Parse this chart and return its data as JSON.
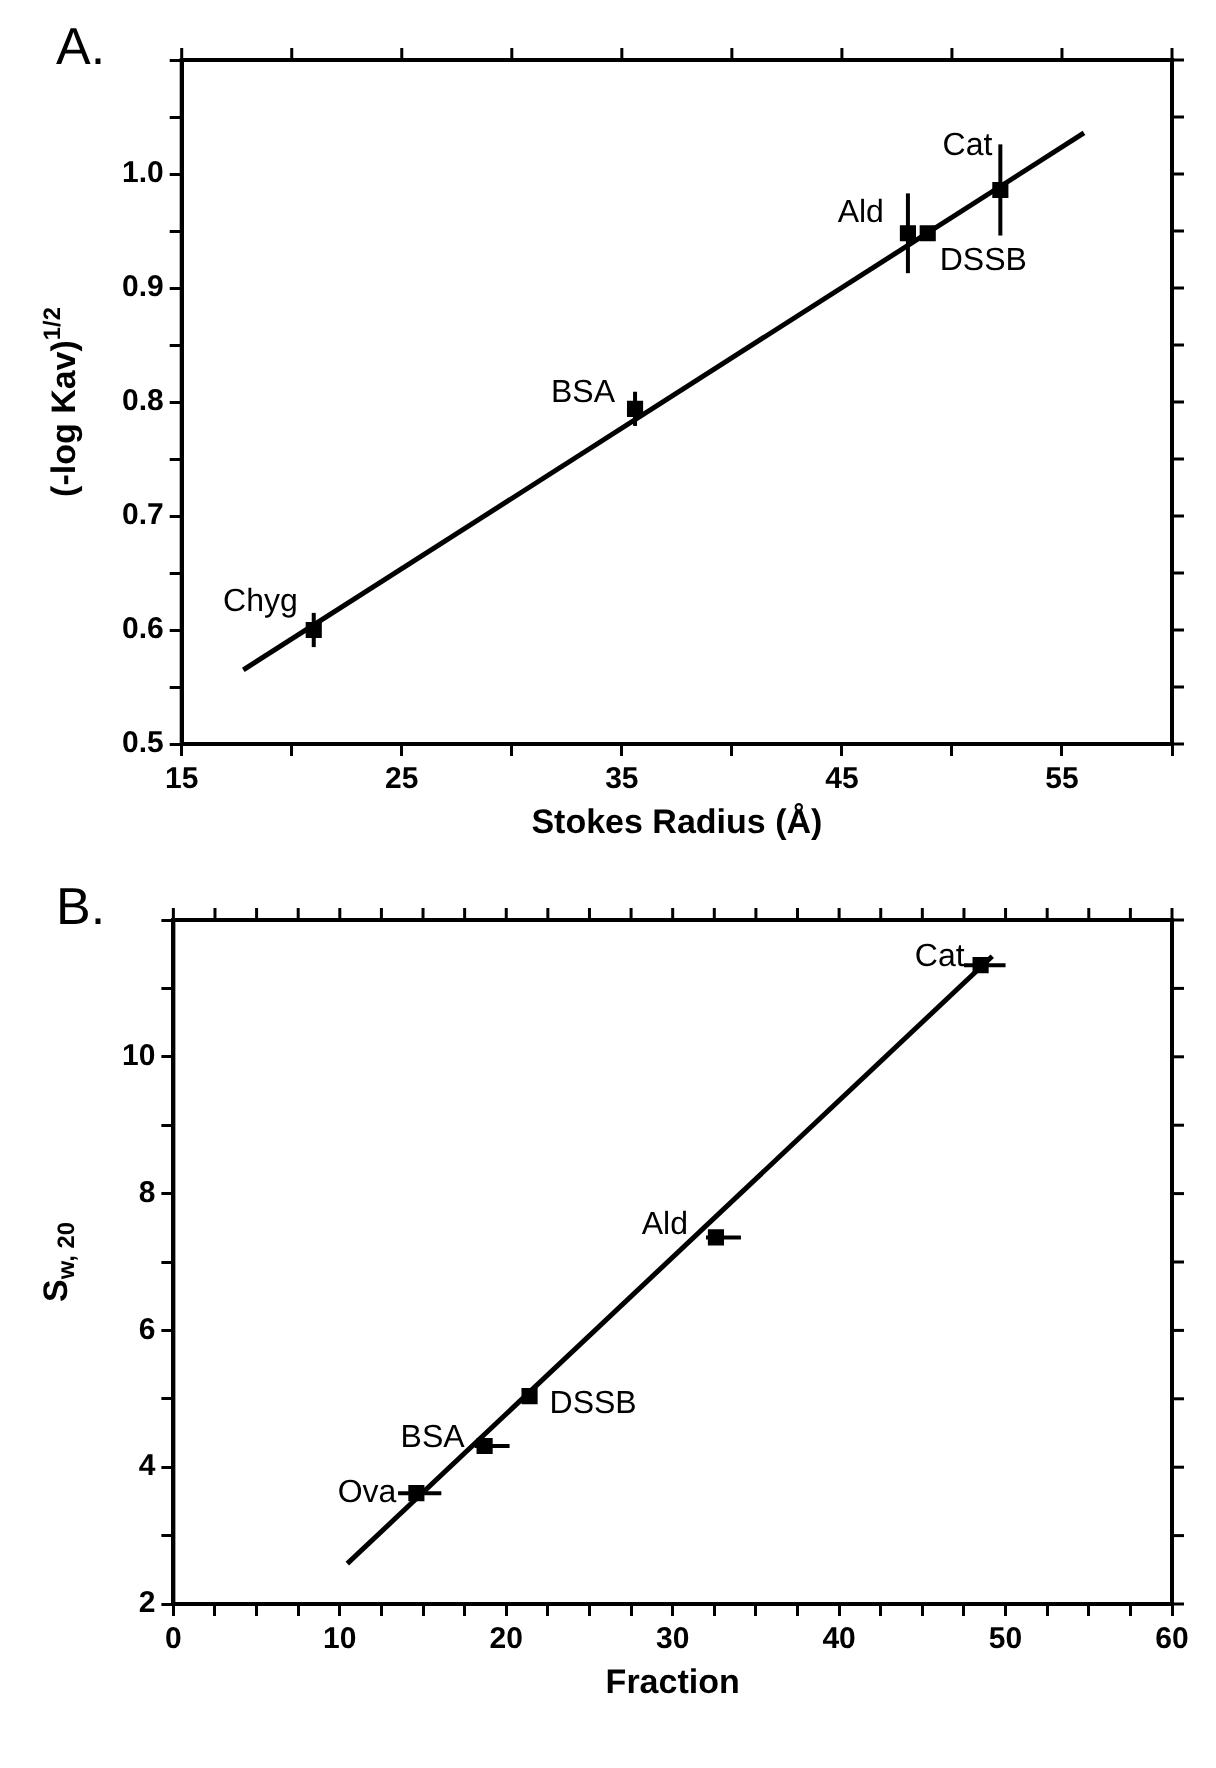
{
  "chart_data": [
    {
      "type": "scatter",
      "title": "A.",
      "xlabel": "Stokes Radius (Å)",
      "ylabel": "(-log Kav)$^{1/2}$",
      "xlim": [
        15,
        60
      ],
      "ylim": [
        0.5,
        1.1
      ],
      "xticks": [
        15,
        {
          "value": 20,
          "label": null
        },
        25,
        {
          "value": 30,
          "label": null
        },
        35,
        {
          "value": 40,
          "label": null
        },
        45,
        {
          "value": 50,
          "label": null
        },
        55,
        {
          "value": 60,
          "label": null
        }
      ],
      "yticks": [
        0.5,
        {
          "value": 0.55,
          "label": null
        },
        0.6,
        {
          "value": 0.65,
          "label": null
        },
        0.7,
        {
          "value": 0.75,
          "label": null
        },
        0.8,
        {
          "value": 0.85,
          "label": null
        },
        0.9,
        {
          "value": 0.95,
          "label": null
        },
        "1.0",
        {
          "value": 1.05,
          "label": null
        },
        {
          "value": 1.1,
          "label": null
        }
      ],
      "grid": false,
      "series": [
        {
          "color": "#000000",
          "marker": "square",
          "x": [
            21.0,
            35.6,
            48.0,
            52.2
          ],
          "values": [
            0.6,
            0.794,
            0.948,
            0.986
          ],
          "errors": [
            0.015,
            0.015,
            0.035,
            0.04
          ]
        },
        {
          "color": "#000000",
          "marker": "square",
          "x": [
            48.9
          ],
          "values": [
            0.948
          ]
        },
        {
          "type": "line",
          "marker": "none",
          "color": "#000000",
          "x": [
            17.8,
            56.0
          ],
          "values": [
            0.565,
            1.036
          ]
        }
      ],
      "annotations": [
        {
          "text": "Chyg",
          "x": 21.0,
          "y": 0.6
        },
        {
          "text": "BSA",
          "x": 35.6,
          "y": 0.794
        },
        {
          "text": "Ald",
          "x": 48.0,
          "y": 0.948
        },
        {
          "text": "DSSB",
          "x": 48.9,
          "y": 0.948
        },
        {
          "text": "Cat",
          "x": 52.2,
          "y": 0.986
        }
      ]
    },
    {
      "type": "scatter",
      "title": "B.",
      "xlabel": "Fraction",
      "ylabel": "S$_{w, 20}$",
      "xlim": [
        0,
        60
      ],
      "ylim": [
        2,
        12
      ],
      "xticks": [
        0,
        {
          "value": 2.5,
          "label": null
        },
        {
          "value": 5,
          "label": null
        },
        {
          "value": 7.5,
          "label": null
        },
        10,
        {
          "value": 12.5,
          "label": null
        },
        {
          "value": 15,
          "label": null
        },
        {
          "value": 17.5,
          "label": null
        },
        20,
        {
          "value": 22.5,
          "label": null
        },
        {
          "value": 25,
          "label": null
        },
        {
          "value": 27.5,
          "label": null
        },
        30,
        {
          "value": 32.5,
          "label": null
        },
        {
          "value": 35,
          "label": null
        },
        {
          "value": 37.5,
          "label": null
        },
        40,
        {
          "value": 42.5,
          "label": null
        },
        {
          "value": 45,
          "label": null
        },
        {
          "value": 47.5,
          "label": null
        },
        50,
        {
          "value": 52.5,
          "label": null
        },
        {
          "value": 55,
          "label": null
        },
        {
          "value": 57.5,
          "label": null
        },
        60
      ],
      "yticks": [
        2,
        {
          "value": 3,
          "label": null
        },
        4,
        {
          "value": 5,
          "label": null
        },
        6,
        {
          "value": 7,
          "label": null
        },
        8,
        {
          "value": 9,
          "label": null
        },
        10,
        {
          "value": 11,
          "label": null
        },
        {
          "value": 12,
          "label": null
        }
      ],
      "grid": false,
      "series": [
        {
          "color": "#000000",
          "marker": "square",
          "x": [
            14.6,
            18.7,
            32.6,
            48.5
          ],
          "values": [
            3.62,
            4.31,
            7.36,
            11.34
          ],
          "xerrors": [
            [
              13.5,
              16.1
            ],
            [
              18.1,
              20.2
            ],
            [
              32.0,
              34.1
            ],
            [
              47.5,
              50.0
            ]
          ]
        },
        {
          "color": "#000000",
          "marker": "square",
          "x": [
            21.4
          ],
          "values": [
            5.04
          ]
        },
        {
          "type": "line",
          "marker": "none",
          "color": "#000000",
          "x": [
            10.45,
            49.2
          ],
          "values": [
            2.59,
            11.47
          ]
        }
      ],
      "annotations": [
        {
          "text": "Ova",
          "x": 14.6,
          "y": 3.62
        },
        {
          "text": "BSA",
          "x": 18.7,
          "y": 4.31
        },
        {
          "text": "DSSB",
          "x": 21.4,
          "y": 5.04
        },
        {
          "text": "Ald",
          "x": 32.6,
          "y": 7.36
        },
        {
          "text": "Cat",
          "x": 48.5,
          "y": 11.34
        }
      ]
    }
  ]
}
